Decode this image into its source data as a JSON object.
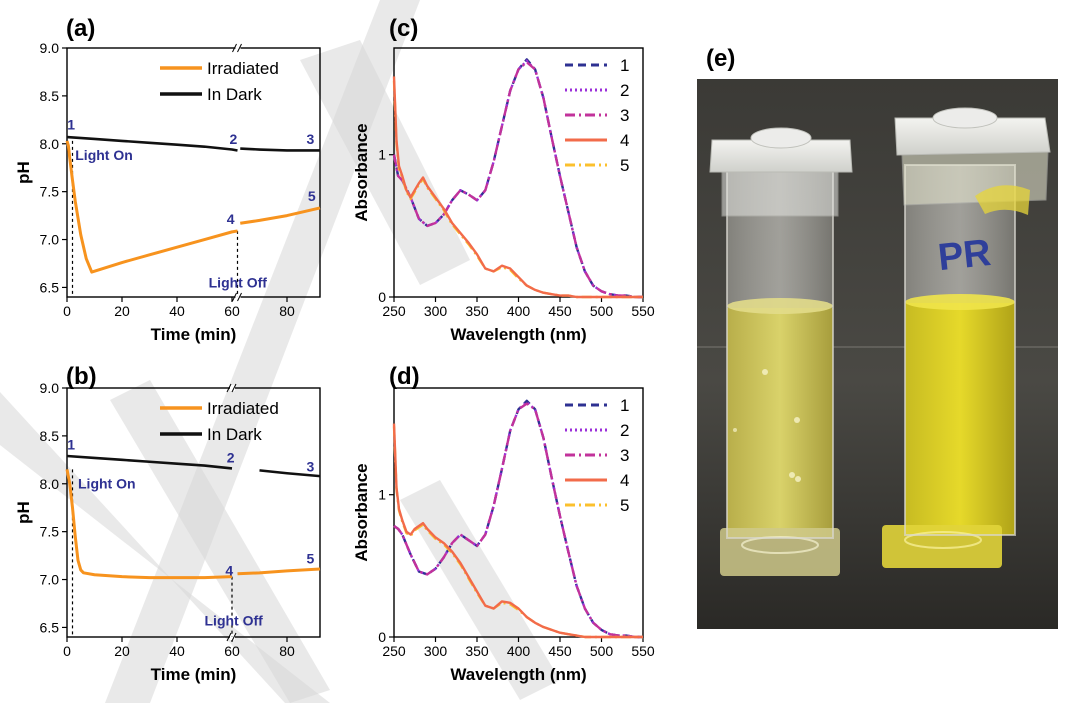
{
  "panel_labels": {
    "a": "(a)",
    "b": "(b)",
    "c": "(c)",
    "d": "(d)",
    "e": "(e)"
  },
  "colors": {
    "irradiated": "#f7931e",
    "dark": "#111111",
    "annotation": "#2e3192",
    "s1": "#2e3192",
    "s2": "#9b30d9",
    "s3": "#c2329b",
    "s4": "#f26b4a",
    "s5": "#fbc02d",
    "watermark": "#d7d7d7"
  },
  "chart_data": [
    {
      "id": "a",
      "type": "line",
      "xlabel": "Time (min)",
      "ylabel": "pH",
      "xlim": [
        0,
        92
      ],
      "ylim": [
        6.4,
        9.0
      ],
      "xticks": [
        0,
        20,
        40,
        60,
        80
      ],
      "yticks": [
        6.5,
        7.0,
        7.5,
        8.0,
        8.5,
        9.0
      ],
      "ytick_labels": [
        "6.5",
        "7.0",
        "7.5",
        "8.0",
        "8.5",
        "9.0"
      ],
      "axis_break_x": 62,
      "legend": [
        "Irradiated",
        "In Dark"
      ],
      "series": [
        {
          "name": "Irradiated",
          "x": [
            0,
            0.5,
            1,
            2,
            3,
            5,
            7,
            9,
            20,
            30,
            40,
            50,
            60,
            62,
            63,
            70,
            80,
            92
          ],
          "y": [
            8.03,
            7.98,
            7.85,
            7.62,
            7.4,
            7.05,
            6.8,
            6.66,
            6.76,
            6.84,
            6.92,
            7.0,
            7.08,
            7.09,
            7.17,
            7.2,
            7.25,
            7.33
          ]
        },
        {
          "name": "In Dark",
          "x": [
            0,
            10,
            20,
            30,
            40,
            50,
            60,
            62,
            63,
            70,
            80,
            92
          ],
          "y": [
            8.07,
            8.05,
            8.03,
            8.01,
            7.99,
            7.97,
            7.94,
            7.93,
            7.95,
            7.94,
            7.93,
            7.93
          ]
        }
      ],
      "point_labels": [
        {
          "text": "1",
          "x": 1.5,
          "y": 8.15
        },
        {
          "text": "2",
          "x": 60.5,
          "y": 8.0
        },
        {
          "text": "3",
          "x": 88.5,
          "y": 8.0
        },
        {
          "text": "4",
          "x": 59.5,
          "y": 7.16
        },
        {
          "text": "5",
          "x": 89,
          "y": 7.4
        }
      ],
      "annotations": [
        {
          "text": "Light On",
          "x": 3,
          "y": 7.83
        },
        {
          "text": "Light Off",
          "x": 51.5,
          "y": 6.5
        }
      ],
      "vlines": [
        2,
        62
      ]
    },
    {
      "id": "b",
      "type": "line",
      "xlabel": "Time (min)",
      "ylabel": "pH",
      "xlim": [
        0,
        92
      ],
      "ylim": [
        6.4,
        9.0
      ],
      "xticks": [
        0,
        20,
        40,
        60,
        80
      ],
      "yticks": [
        6.5,
        7.0,
        7.5,
        8.0,
        8.5,
        9.0
      ],
      "ytick_labels": [
        "6.5",
        "7.0",
        "7.5",
        "8.0",
        "8.5",
        "9.0"
      ],
      "axis_break_x": 60,
      "legend": [
        "Irradiated",
        "In Dark"
      ],
      "series": [
        {
          "name": "Irradiated",
          "x": [
            0,
            1,
            2,
            3,
            4,
            5,
            6,
            10,
            20,
            30,
            40,
            50,
            60,
            62,
            70,
            80,
            92
          ],
          "y": [
            8.15,
            8.0,
            7.75,
            7.45,
            7.2,
            7.1,
            7.07,
            7.05,
            7.03,
            7.02,
            7.02,
            7.02,
            7.03,
            7.06,
            7.07,
            7.09,
            7.11
          ]
        },
        {
          "name": "In Dark",
          "x": [
            0,
            10,
            20,
            30,
            40,
            50,
            60,
            70,
            80,
            92
          ],
          "y": [
            8.29,
            8.27,
            8.25,
            8.23,
            8.21,
            8.19,
            8.16,
            8.14,
            8.11,
            8.08
          ]
        }
      ],
      "point_labels": [
        {
          "text": "1",
          "x": 1.5,
          "y": 8.36
        },
        {
          "text": "2",
          "x": 59.5,
          "y": 8.22
        },
        {
          "text": "3",
          "x": 88.5,
          "y": 8.13
        },
        {
          "text": "4",
          "x": 59,
          "y": 7.04
        },
        {
          "text": "5",
          "x": 88.5,
          "y": 7.17
        }
      ],
      "annotations": [
        {
          "text": "Light On",
          "x": 4,
          "y": 7.95
        },
        {
          "text": "Light Off",
          "x": 50,
          "y": 6.52
        }
      ],
      "vlines": [
        2,
        60
      ]
    },
    {
      "id": "c",
      "type": "line",
      "xlabel": "Wavelength (nm)",
      "ylabel": "Absorbance",
      "xlim": [
        250,
        550
      ],
      "ylim": [
        0,
        1.75
      ],
      "xticks": [
        250,
        300,
        350,
        400,
        450,
        500,
        550
      ],
      "yticks": [
        0,
        1
      ],
      "ytick_labels": [
        "0",
        "1"
      ],
      "legend": [
        "1",
        "2",
        "3",
        "4",
        "5"
      ],
      "series": [
        {
          "name": "1",
          "x": [
            250,
            255,
            260,
            270,
            280,
            290,
            300,
            310,
            320,
            330,
            340,
            350,
            360,
            370,
            380,
            390,
            400,
            410,
            420,
            430,
            440,
            450,
            460,
            470,
            480,
            490,
            500,
            510,
            520,
            530,
            540,
            550
          ],
          "y": [
            1.0,
            0.85,
            0.82,
            0.7,
            0.55,
            0.5,
            0.52,
            0.58,
            0.68,
            0.75,
            0.72,
            0.68,
            0.75,
            0.95,
            1.2,
            1.45,
            1.6,
            1.67,
            1.6,
            1.4,
            1.12,
            0.85,
            0.6,
            0.35,
            0.18,
            0.08,
            0.04,
            0.02,
            0.01,
            0.01,
            0.0,
            0.0
          ]
        },
        {
          "name": "2",
          "x": [
            250,
            255,
            260,
            270,
            280,
            290,
            300,
            310,
            320,
            330,
            340,
            350,
            360,
            370,
            380,
            390,
            400,
            410,
            420,
            430,
            440,
            450,
            460,
            470,
            480,
            490,
            500,
            510,
            520,
            530,
            540,
            550
          ],
          "y": [
            1.0,
            0.85,
            0.82,
            0.7,
            0.55,
            0.5,
            0.52,
            0.58,
            0.68,
            0.75,
            0.72,
            0.68,
            0.75,
            0.95,
            1.2,
            1.45,
            1.6,
            1.66,
            1.6,
            1.4,
            1.12,
            0.85,
            0.6,
            0.35,
            0.18,
            0.08,
            0.04,
            0.02,
            0.01,
            0.01,
            0.0,
            0.0
          ]
        },
        {
          "name": "3",
          "x": [
            250,
            255,
            260,
            270,
            280,
            290,
            300,
            310,
            320,
            330,
            340,
            350,
            360,
            370,
            380,
            390,
            400,
            410,
            420,
            430,
            440,
            450,
            460,
            470,
            480,
            490,
            500,
            510,
            520,
            530,
            540,
            550
          ],
          "y": [
            1.0,
            0.85,
            0.82,
            0.7,
            0.55,
            0.5,
            0.52,
            0.58,
            0.68,
            0.75,
            0.72,
            0.68,
            0.75,
            0.95,
            1.2,
            1.45,
            1.6,
            1.65,
            1.6,
            1.4,
            1.12,
            0.85,
            0.6,
            0.35,
            0.18,
            0.08,
            0.04,
            0.02,
            0.01,
            0.01,
            0.0,
            0.0
          ]
        },
        {
          "name": "4",
          "x": [
            250,
            253,
            256,
            260,
            265,
            270,
            275,
            280,
            285,
            290,
            300,
            310,
            320,
            330,
            340,
            350,
            360,
            370,
            380,
            390,
            400,
            410,
            420,
            430,
            440,
            450,
            460,
            470,
            480,
            490,
            500,
            520,
            550
          ],
          "y": [
            1.55,
            1.1,
            0.92,
            0.85,
            0.75,
            0.7,
            0.75,
            0.8,
            0.84,
            0.78,
            0.7,
            0.62,
            0.52,
            0.45,
            0.38,
            0.3,
            0.2,
            0.18,
            0.22,
            0.2,
            0.14,
            0.08,
            0.05,
            0.03,
            0.02,
            0.01,
            0.01,
            0.0,
            0.0,
            0.0,
            0.0,
            0.0,
            0.0
          ]
        },
        {
          "name": "5",
          "x": [
            250,
            253,
            256,
            260,
            265,
            270,
            275,
            280,
            285,
            290,
            300,
            310,
            320,
            330,
            340,
            350,
            360,
            370,
            380,
            390,
            400,
            410,
            420,
            430,
            440,
            450,
            460,
            470,
            480,
            490,
            500,
            520,
            550
          ],
          "y": [
            1.52,
            1.08,
            0.9,
            0.84,
            0.74,
            0.69,
            0.74,
            0.79,
            0.83,
            0.77,
            0.69,
            0.61,
            0.51,
            0.44,
            0.37,
            0.29,
            0.2,
            0.18,
            0.21,
            0.19,
            0.13,
            0.08,
            0.05,
            0.03,
            0.02,
            0.01,
            0.01,
            0.0,
            0.0,
            0.0,
            0.0,
            0.0,
            0.0
          ]
        }
      ]
    },
    {
      "id": "d",
      "type": "line",
      "xlabel": "Wavelength (nm)",
      "ylabel": "Absorbance",
      "xlim": [
        250,
        550
      ],
      "ylim": [
        0,
        1.75
      ],
      "xticks": [
        250,
        300,
        350,
        400,
        450,
        500,
        550
      ],
      "yticks": [
        0,
        1
      ],
      "ytick_labels": [
        "0",
        "1"
      ],
      "legend": [
        "1",
        "2",
        "3",
        "4",
        "5"
      ],
      "series": [
        {
          "name": "1",
          "x": [
            250,
            255,
            260,
            270,
            280,
            290,
            300,
            310,
            320,
            330,
            340,
            350,
            360,
            370,
            380,
            390,
            400,
            410,
            420,
            430,
            440,
            450,
            460,
            470,
            480,
            490,
            500,
            510,
            520,
            530,
            540,
            550
          ],
          "y": [
            0.78,
            0.76,
            0.72,
            0.58,
            0.46,
            0.44,
            0.48,
            0.56,
            0.66,
            0.72,
            0.68,
            0.64,
            0.72,
            0.92,
            1.18,
            1.45,
            1.6,
            1.66,
            1.6,
            1.4,
            1.12,
            0.85,
            0.6,
            0.36,
            0.2,
            0.1,
            0.05,
            0.02,
            0.01,
            0.01,
            0.0,
            0.0
          ]
        },
        {
          "name": "2",
          "x": [
            250,
            255,
            260,
            270,
            280,
            290,
            300,
            310,
            320,
            330,
            340,
            350,
            360,
            370,
            380,
            390,
            400,
            410,
            420,
            430,
            440,
            450,
            460,
            470,
            480,
            490,
            500,
            510,
            520,
            530,
            540,
            550
          ],
          "y": [
            0.78,
            0.76,
            0.72,
            0.58,
            0.46,
            0.44,
            0.48,
            0.56,
            0.66,
            0.72,
            0.68,
            0.64,
            0.72,
            0.92,
            1.18,
            1.45,
            1.6,
            1.65,
            1.6,
            1.4,
            1.12,
            0.85,
            0.6,
            0.36,
            0.2,
            0.1,
            0.05,
            0.02,
            0.01,
            0.01,
            0.0,
            0.0
          ]
        },
        {
          "name": "3",
          "x": [
            250,
            255,
            260,
            270,
            280,
            290,
            300,
            310,
            320,
            330,
            340,
            350,
            360,
            370,
            380,
            390,
            400,
            410,
            420,
            430,
            440,
            450,
            460,
            470,
            480,
            490,
            500,
            510,
            520,
            530,
            540,
            550
          ],
          "y": [
            0.78,
            0.76,
            0.72,
            0.58,
            0.46,
            0.44,
            0.48,
            0.56,
            0.66,
            0.72,
            0.68,
            0.64,
            0.72,
            0.92,
            1.18,
            1.45,
            1.6,
            1.64,
            1.6,
            1.4,
            1.12,
            0.85,
            0.6,
            0.36,
            0.2,
            0.1,
            0.05,
            0.02,
            0.01,
            0.01,
            0.0,
            0.0
          ]
        },
        {
          "name": "4",
          "x": [
            250,
            253,
            256,
            260,
            265,
            270,
            275,
            280,
            285,
            290,
            300,
            310,
            320,
            330,
            340,
            350,
            360,
            370,
            380,
            390,
            400,
            410,
            420,
            430,
            440,
            450,
            460,
            470,
            480,
            490,
            500,
            520,
            550
          ],
          "y": [
            1.5,
            1.05,
            0.9,
            0.82,
            0.74,
            0.72,
            0.76,
            0.78,
            0.8,
            0.76,
            0.7,
            0.66,
            0.6,
            0.52,
            0.42,
            0.32,
            0.22,
            0.2,
            0.25,
            0.24,
            0.2,
            0.14,
            0.1,
            0.07,
            0.05,
            0.03,
            0.02,
            0.01,
            0.0,
            0.0,
            0.0,
            0.0,
            0.0
          ]
        },
        {
          "name": "5",
          "x": [
            250,
            253,
            256,
            260,
            265,
            270,
            275,
            280,
            285,
            290,
            300,
            310,
            320,
            330,
            340,
            350,
            360,
            370,
            380,
            390,
            400,
            410,
            420,
            430,
            440,
            450,
            460,
            470,
            480,
            490,
            500,
            520,
            550
          ],
          "y": [
            1.48,
            1.04,
            0.89,
            0.81,
            0.73,
            0.71,
            0.75,
            0.77,
            0.79,
            0.75,
            0.69,
            0.65,
            0.59,
            0.51,
            0.41,
            0.31,
            0.22,
            0.2,
            0.24,
            0.23,
            0.19,
            0.14,
            0.1,
            0.07,
            0.05,
            0.03,
            0.02,
            0.01,
            0.0,
            0.0,
            0.0,
            0.0,
            0.0
          ]
        }
      ]
    }
  ],
  "photo": {
    "label": "(e)",
    "cuvette_right_text": "PR"
  }
}
